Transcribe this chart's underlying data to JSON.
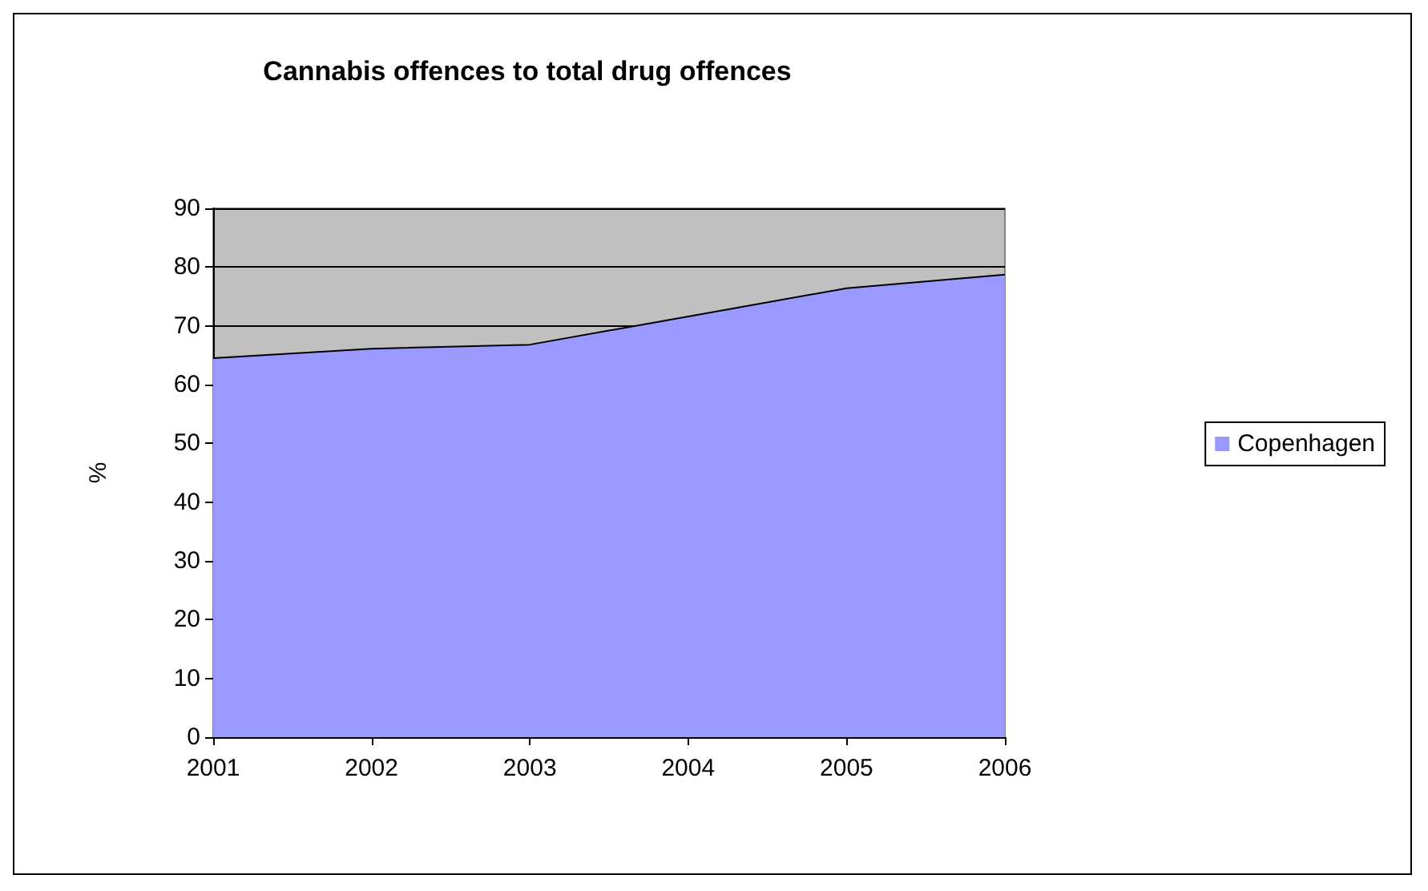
{
  "chart_data": {
    "type": "area",
    "title": "Cannabis offences to total drug offences",
    "ylabel": "%",
    "categories": [
      "2001",
      "2002",
      "2003",
      "2004",
      "2005",
      "2006"
    ],
    "series": [
      {
        "name": "Copenhagen",
        "color": "#9999ff",
        "values": [
          64.5,
          66.1,
          66.8,
          71.6,
          76.4,
          78.7
        ]
      }
    ],
    "ylim": [
      0,
      90
    ],
    "yticks": [
      0,
      10,
      20,
      30,
      40,
      50,
      60,
      70,
      80,
      90
    ],
    "grid": "y",
    "legend": "right"
  }
}
